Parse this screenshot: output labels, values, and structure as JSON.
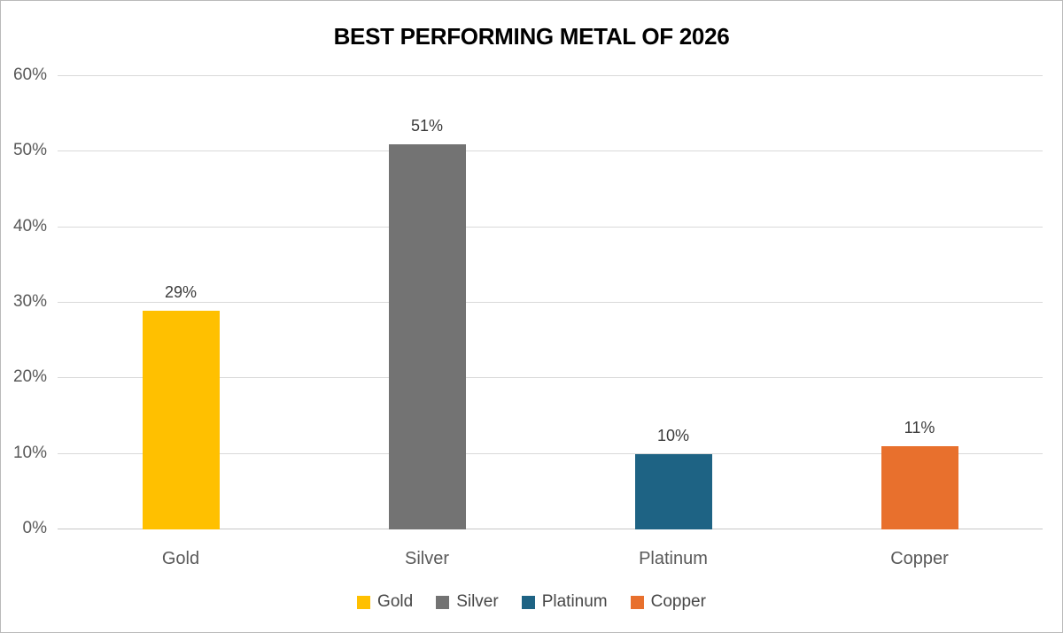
{
  "chart_data": {
    "type": "bar",
    "title": "BEST PERFORMING METAL OF 2026",
    "categories": [
      "Gold",
      "Silver",
      "Platinum",
      "Copper"
    ],
    "values": [
      29,
      51,
      10,
      11
    ],
    "data_labels": [
      "29%",
      "51%",
      "10%",
      "11%"
    ],
    "series_colors": [
      "#FFC000",
      "#737373",
      "#1E6384",
      "#E8702D"
    ],
    "xlabel": "",
    "ylabel": "",
    "ylim": [
      0,
      60
    ],
    "yticks": [
      0,
      10,
      20,
      30,
      40,
      50,
      60
    ],
    "ytick_labels": [
      "0%",
      "10%",
      "20%",
      "30%",
      "40%",
      "50%",
      "60%"
    ],
    "grid": true,
    "legend": {
      "position": "bottom",
      "entries": [
        "Gold",
        "Silver",
        "Platinum",
        "Copper"
      ]
    }
  },
  "colors": {
    "background": "#FFFFFF",
    "border": "#B9B9B9",
    "gridline": "#D9D9D9",
    "axis_line": "#C6C6C6",
    "title_text": "#000000",
    "tick_label_text": "#595959",
    "category_label_text": "#595959",
    "data_label_text": "#3B3B3B",
    "legend_text": "#474747"
  }
}
